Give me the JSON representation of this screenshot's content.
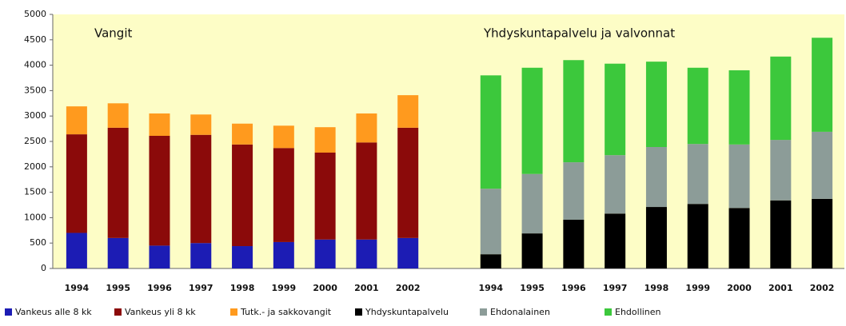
{
  "chart_data": {
    "type": "stacked_bar",
    "annotations": [
      "Vangit",
      "Yhdyskuntapalvelu  ja  valvonnat"
    ],
    "categories": [
      "1994",
      "1995",
      "1996",
      "1997",
      "1998",
      "1999",
      "2000",
      "2001",
      "2002",
      null,
      "1994",
      "1995",
      "1996",
      "1997",
      "1998",
      "1999",
      "2000",
      "2001",
      "2002"
    ],
    "series": [
      {
        "name": "Vankeus alle 8 kk",
        "color": "#1c1cb4",
        "values": [
          700,
          600,
          450,
          500,
          440,
          520,
          570,
          570,
          600,
          null,
          null,
          null,
          null,
          null,
          null,
          null,
          null,
          null,
          null
        ]
      },
      {
        "name": "Vankeus yli 8 kk",
        "color": "#8b0a0a",
        "values": [
          1940,
          2170,
          2160,
          2130,
          2000,
          1850,
          1710,
          1910,
          2170,
          null,
          null,
          null,
          null,
          null,
          null,
          null,
          null,
          null,
          null
        ]
      },
      {
        "name": "Tutk.- ja sakkovangit",
        "color": "#ff9a1e",
        "values": [
          550,
          480,
          440,
          400,
          410,
          440,
          500,
          570,
          640,
          null,
          null,
          null,
          null,
          null,
          null,
          null,
          null,
          null,
          null
        ]
      },
      {
        "name": "Yhdyskuntapalvelu",
        "color": "#000000",
        "values": [
          null,
          null,
          null,
          null,
          null,
          null,
          null,
          null,
          null,
          null,
          280,
          690,
          960,
          1080,
          1210,
          1270,
          1190,
          1340,
          1370
        ]
      },
      {
        "name": "Ehdonalainen",
        "color": "#8c9c98",
        "values": [
          null,
          null,
          null,
          null,
          null,
          null,
          null,
          null,
          null,
          null,
          1290,
          1170,
          1130,
          1150,
          1180,
          1180,
          1250,
          1190,
          1320
        ]
      },
      {
        "name": "Ehdollinen",
        "color": "#3cc83c",
        "values": [
          null,
          null,
          null,
          null,
          null,
          null,
          null,
          null,
          null,
          null,
          2230,
          2090,
          2010,
          1800,
          1680,
          1500,
          1460,
          1640,
          1850
        ]
      }
    ],
    "ylim": [
      0,
      5000
    ],
    "yticks": [
      0,
      500,
      1000,
      1500,
      2000,
      2500,
      3000,
      3500,
      4000,
      4500,
      5000
    ],
    "grid": false
  }
}
